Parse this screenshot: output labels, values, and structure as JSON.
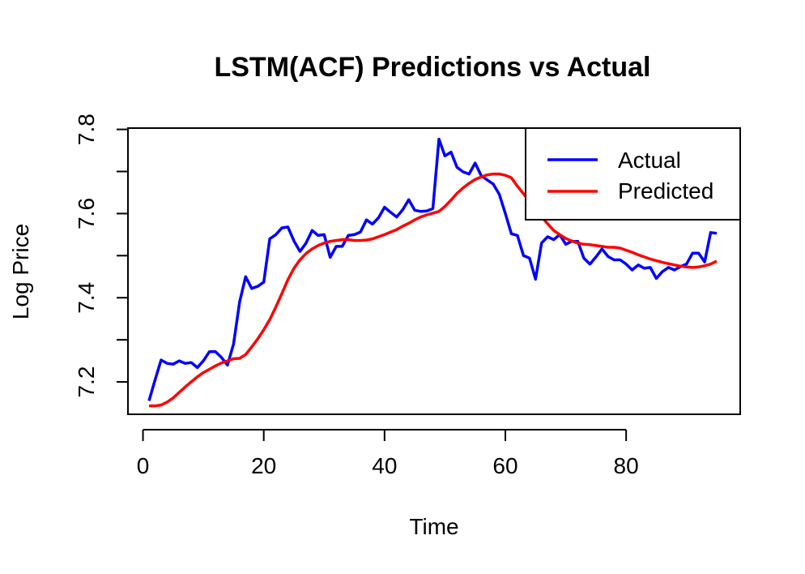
{
  "chart_data": {
    "type": "line",
    "title": "LSTM(ACF) Predictions vs Actual",
    "xlabel": "Time",
    "ylabel": "Log Price",
    "xlim": [
      1,
      95
    ],
    "ylim": [
      7.15,
      7.78
    ],
    "x_ticks": [
      0,
      20,
      40,
      60,
      80
    ],
    "y_ticks": [
      7.2,
      7.4,
      7.6,
      7.8
    ],
    "x_tick_labels": [
      "0",
      "20",
      "40",
      "60",
      "80"
    ],
    "y_tick_labels": [
      "7.2",
      "7.4",
      "7.6",
      "7.8"
    ],
    "grid": false,
    "legend_position": "top-right",
    "series": [
      {
        "name": "Actual",
        "color": "#0000ff",
        "x": [
          1,
          2,
          3,
          4,
          5,
          6,
          7,
          8,
          9,
          10,
          11,
          12,
          13,
          14,
          15,
          16,
          17,
          18,
          19,
          20,
          21,
          22,
          23,
          24,
          25,
          26,
          27,
          28,
          29,
          30,
          31,
          32,
          33,
          34,
          35,
          36,
          37,
          38,
          39,
          40,
          41,
          42,
          43,
          44,
          45,
          46,
          47,
          48,
          49,
          50,
          51,
          52,
          53,
          54,
          55,
          56,
          57,
          58,
          59,
          60,
          61,
          62,
          63,
          64,
          65,
          66,
          67,
          68,
          69,
          70,
          71,
          72,
          73,
          74,
          75,
          76,
          77,
          78,
          79,
          80,
          81,
          82,
          83,
          84,
          85,
          86,
          87,
          88,
          89,
          90,
          91,
          92,
          93,
          94,
          95
        ],
        "values": [
          7.155,
          7.205,
          7.252,
          7.244,
          7.242,
          7.25,
          7.244,
          7.246,
          7.234,
          7.25,
          7.272,
          7.272,
          7.258,
          7.24,
          7.29,
          7.39,
          7.45,
          7.422,
          7.427,
          7.437,
          7.54,
          7.55,
          7.566,
          7.568,
          7.535,
          7.51,
          7.53,
          7.56,
          7.548,
          7.55,
          7.496,
          7.522,
          7.522,
          7.548,
          7.55,
          7.556,
          7.585,
          7.575,
          7.59,
          7.615,
          7.603,
          7.592,
          7.609,
          7.633,
          7.608,
          7.605,
          7.606,
          7.612,
          7.777,
          7.737,
          7.746,
          7.71,
          7.699,
          7.694,
          7.72,
          7.69,
          7.68,
          7.67,
          7.646,
          7.6,
          7.552,
          7.548,
          7.5,
          7.494,
          7.444,
          7.53,
          7.545,
          7.538,
          7.55,
          7.527,
          7.534,
          7.534,
          7.494,
          7.48,
          7.497,
          7.516,
          7.498,
          7.49,
          7.49,
          7.48,
          7.466,
          7.478,
          7.47,
          7.472,
          7.446,
          7.462,
          7.472,
          7.466,
          7.474,
          7.48,
          7.506,
          7.506,
          7.485,
          7.555,
          7.553
        ]
      },
      {
        "name": "Predicted",
        "color": "#ff0000",
        "x": [
          1,
          2,
          3,
          4,
          5,
          6,
          7,
          8,
          9,
          10,
          11,
          12,
          13,
          14,
          15,
          16,
          17,
          18,
          19,
          20,
          21,
          22,
          23,
          24,
          25,
          26,
          27,
          28,
          29,
          30,
          31,
          32,
          33,
          34,
          35,
          36,
          37,
          38,
          39,
          40,
          41,
          42,
          43,
          44,
          45,
          46,
          47,
          48,
          49,
          50,
          51,
          52,
          53,
          54,
          55,
          56,
          57,
          58,
          59,
          60,
          61,
          62,
          63,
          64,
          65,
          66,
          67,
          68,
          69,
          70,
          71,
          72,
          73,
          74,
          75,
          76,
          77,
          78,
          79,
          80,
          81,
          82,
          83,
          84,
          85,
          86,
          87,
          88,
          89,
          90,
          91,
          92,
          93,
          94,
          95
        ],
        "values": [
          7.143,
          7.143,
          7.145,
          7.152,
          7.162,
          7.175,
          7.188,
          7.2,
          7.212,
          7.222,
          7.23,
          7.238,
          7.245,
          7.25,
          7.255,
          7.256,
          7.265,
          7.283,
          7.302,
          7.324,
          7.348,
          7.378,
          7.41,
          7.443,
          7.47,
          7.49,
          7.505,
          7.516,
          7.524,
          7.53,
          7.534,
          7.536,
          7.538,
          7.538,
          7.536,
          7.536,
          7.537,
          7.54,
          7.545,
          7.55,
          7.556,
          7.562,
          7.57,
          7.577,
          7.585,
          7.592,
          7.597,
          7.601,
          7.605,
          7.617,
          7.632,
          7.648,
          7.661,
          7.672,
          7.681,
          7.687,
          7.692,
          7.694,
          7.694,
          7.691,
          7.685,
          7.665,
          7.647,
          7.63,
          7.61,
          7.592,
          7.576,
          7.56,
          7.55,
          7.541,
          7.535,
          7.53,
          7.527,
          7.526,
          7.524,
          7.522,
          7.52,
          7.52,
          7.518,
          7.513,
          7.508,
          7.502,
          7.497,
          7.492,
          7.488,
          7.484,
          7.481,
          7.478,
          7.475,
          7.473,
          7.472,
          7.473,
          7.476,
          7.48,
          7.487
        ]
      }
    ]
  }
}
